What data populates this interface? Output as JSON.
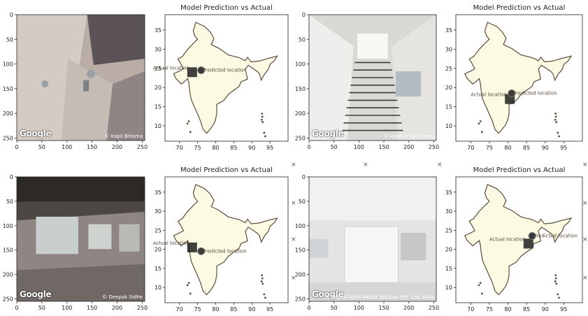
{
  "panels": [
    {
      "kind": "photo",
      "attribution": "© Kapil Bhisma",
      "logo": "Google",
      "scene": "sink",
      "chart_data": {
        "type": "image",
        "xticks": [
          0,
          50,
          100,
          150,
          200,
          250
        ],
        "yticks": [
          0,
          50,
          100,
          150,
          200,
          250
        ],
        "xlim": [
          0,
          255
        ],
        "ylim": [
          255,
          0
        ]
      }
    },
    {
      "kind": "map",
      "title": "Model Prediction vs Actual",
      "actual_label": "Actual location",
      "predicted_label": "Predicted location",
      "chart_data": {
        "type": "scatter",
        "xticks": [
          70,
          75,
          80,
          85,
          90,
          95
        ],
        "yticks": [
          10,
          15,
          20,
          25,
          30,
          35
        ],
        "xlim": [
          66,
          100
        ],
        "ylim": [
          6,
          39
        ],
        "actual": {
          "x": 73.5,
          "y": 24.0
        },
        "predicted": {
          "x": 76.0,
          "y": 24.5
        }
      }
    },
    {
      "kind": "photo",
      "attribution": "© Aparna 360 views",
      "logo": "Google",
      "scene": "stairs",
      "chart_data": {
        "type": "image",
        "xticks": [
          0,
          50,
          100,
          150,
          200,
          250
        ],
        "yticks": [
          0,
          50,
          100,
          150,
          200,
          250
        ],
        "xlim": [
          0,
          255
        ],
        "ylim": [
          255,
          0
        ]
      }
    },
    {
      "kind": "map",
      "title": "Model Prediction vs Actual",
      "actual_label": "Actual location",
      "predicted_label": "Predicted location",
      "chart_data": {
        "type": "scatter",
        "xticks": [
          70,
          75,
          80,
          85,
          90,
          95
        ],
        "yticks": [
          10,
          15,
          20,
          25,
          30,
          35
        ],
        "xlim": [
          66,
          100
        ],
        "ylim": [
          6,
          39
        ],
        "actual": {
          "x": 80.5,
          "y": 17.0
        },
        "predicted": {
          "x": 81.0,
          "y": 18.5
        }
      }
    },
    {
      "kind": "photo",
      "attribution": "© Deepak Sidhe",
      "logo": "Google",
      "scene": "room",
      "chart_data": {
        "type": "image",
        "xticks": [
          0,
          50,
          100,
          150,
          200,
          250
        ],
        "yticks": [
          0,
          50,
          100,
          150,
          200,
          250
        ],
        "xlim": [
          0,
          255
        ],
        "ylim": [
          255,
          0
        ]
      }
    },
    {
      "kind": "map",
      "title": "Model Prediction vs Actual",
      "actual_label": "Actual location",
      "predicted_label": "Predicted location",
      "chart_data": {
        "type": "scatter",
        "xticks": [
          70,
          75,
          80,
          85,
          90,
          95
        ],
        "yticks": [
          10,
          15,
          20,
          25,
          30,
          35
        ],
        "xlim": [
          66,
          100
        ],
        "ylim": [
          6,
          39
        ],
        "actual": {
          "x": 73.5,
          "y": 20.5
        },
        "predicted": {
          "x": 76.0,
          "y": 19.5
        }
      }
    },
    {
      "kind": "photo",
      "attribution": "© Digital India Media Solution Pvt. Ltd. India",
      "logo": "Google",
      "scene": "hall",
      "chart_data": {
        "type": "image",
        "xticks": [
          0,
          50,
          100,
          150,
          200,
          250
        ],
        "yticks": [
          0,
          50,
          100,
          150,
          200,
          250
        ],
        "xlim": [
          0,
          255
        ],
        "ylim": [
          255,
          0
        ]
      }
    },
    {
      "kind": "map",
      "title": "Model Prediction vs Actual",
      "actual_label": "Actual location",
      "predicted_label": "Predicted location",
      "chart_data": {
        "type": "scatter",
        "xticks": [
          70,
          75,
          80,
          85,
          90,
          95
        ],
        "yticks": [
          10,
          15,
          20,
          25,
          30,
          35
        ],
        "xlim": [
          66,
          100
        ],
        "ylim": [
          6,
          39
        ],
        "actual": {
          "x": 85.5,
          "y": 21.5
        },
        "predicted": {
          "x": 86.5,
          "y": 23.5
        }
      }
    }
  ],
  "stray_marks": "×"
}
